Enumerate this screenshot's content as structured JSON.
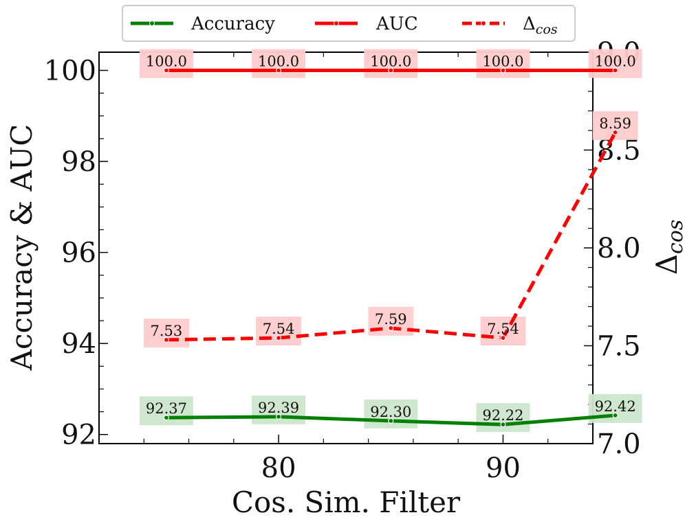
{
  "chart_data": {
    "type": "line",
    "xlabel": "Cos. Sim. Filter",
    "ylabel_left": "Accuracy & AUC",
    "ylabel_right_main": "Δ",
    "ylabel_right_sub": "cos",
    "x": [
      75,
      80,
      85,
      90,
      95
    ],
    "xlim": [
      72,
      94
    ],
    "x_ticks": [
      80,
      90
    ],
    "x_tick_labels": [
      "80",
      "90"
    ],
    "ylim_left": [
      91.8,
      100.4
    ],
    "y_ticks_left": [
      92,
      94,
      96,
      98,
      100
    ],
    "y_tick_labels_left": [
      "92",
      "94",
      "96",
      "98",
      "100"
    ],
    "ylim_right": [
      7.0,
      9.0
    ],
    "y_ticks_right": [
      7.0,
      7.5,
      8.0,
      8.5,
      9.0
    ],
    "y_tick_labels_right": [
      "7.0",
      "7.5",
      "8.0",
      "8.5",
      "9.0"
    ],
    "legend_position": "top",
    "series": [
      {
        "name": "Accuracy",
        "axis": "left",
        "color": "#008000",
        "label_bg": "#cce6cc",
        "style": "solid",
        "values": [
          92.37,
          92.39,
          92.3,
          92.22,
          92.42
        ],
        "labels": [
          "92.37",
          "92.39",
          "92.30",
          "92.22",
          "92.42"
        ]
      },
      {
        "name": "AUC",
        "axis": "left",
        "color": "#ff0000",
        "label_bg": "#ffcccc",
        "style": "solid",
        "values": [
          100.0,
          100.0,
          100.0,
          100.0,
          100.0
        ],
        "labels": [
          "100.0",
          "100.0",
          "100.0",
          "100.0",
          "100.0"
        ]
      },
      {
        "name": "Δcos",
        "legend_main": "Δ",
        "legend_sub": "cos",
        "axis": "right",
        "color": "#ff0000",
        "label_bg": "#ffcccc",
        "style": "dashed",
        "values": [
          7.53,
          7.54,
          7.59,
          7.54,
          8.59
        ],
        "labels": [
          "7.53",
          "7.54",
          "7.59",
          "7.54",
          "8.59"
        ]
      }
    ]
  }
}
